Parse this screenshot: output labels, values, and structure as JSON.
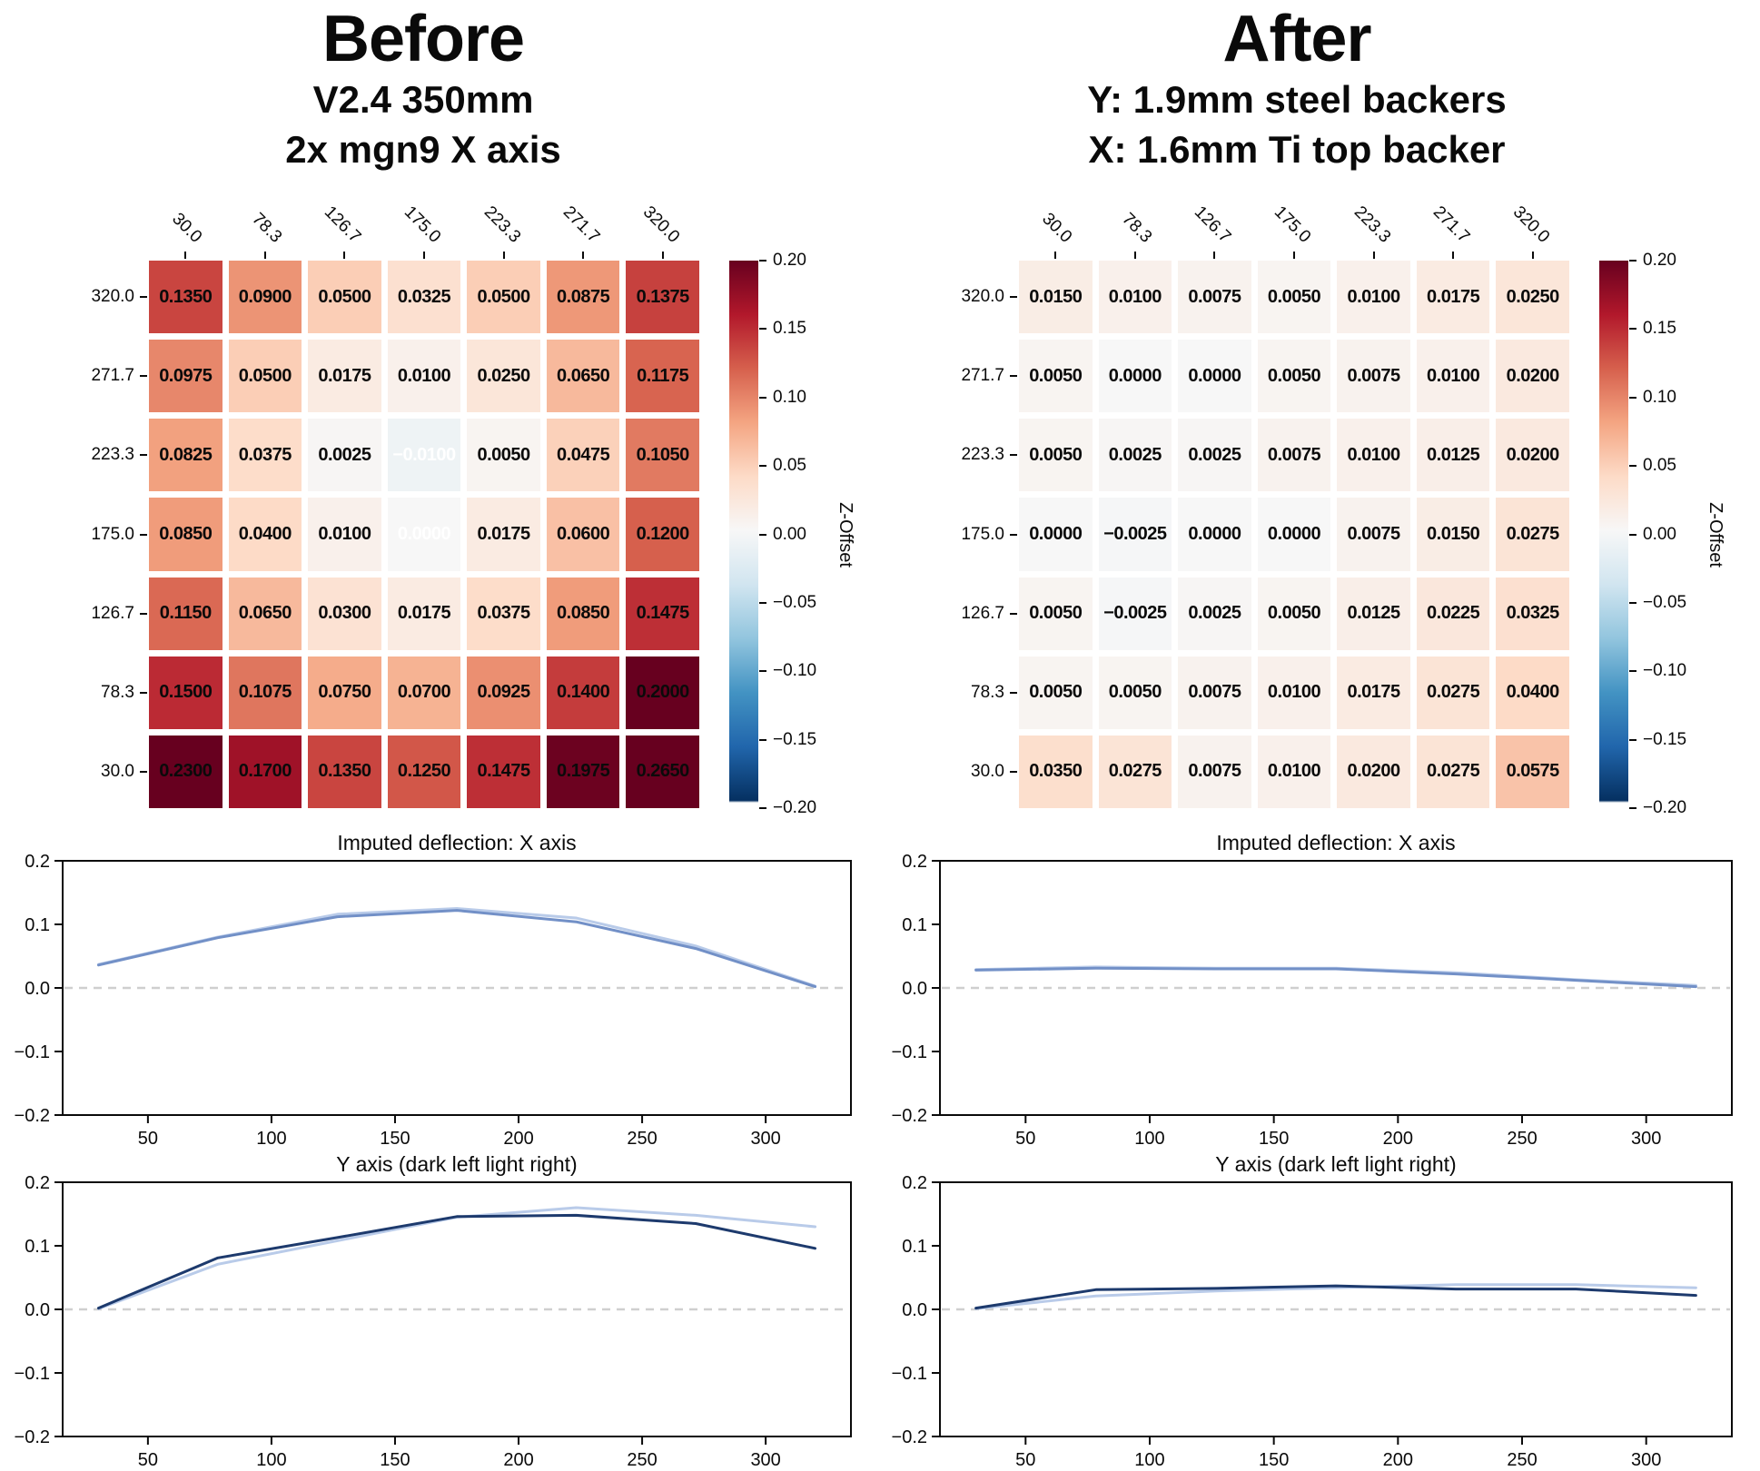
{
  "panels": {
    "before": {
      "title": "Before",
      "subtitle1": "V2.4 350mm",
      "subtitle2": "2x mgn9 X axis"
    },
    "after": {
      "title": "After",
      "subtitle1": "Y: 1.9mm steel backers",
      "subtitle2": "X: 1.6mm Ti top backer"
    }
  },
  "chart_data": [
    {
      "id": "before_heatmap",
      "type": "heatmap",
      "panel": "Before",
      "x_labels": [
        "30.0",
        "78.3",
        "126.7",
        "175.0",
        "223.3",
        "271.7",
        "320.0"
      ],
      "y_labels": [
        "320.0",
        "271.7",
        "223.3",
        "175.0",
        "126.7",
        "78.3",
        "30.0"
      ],
      "values": [
        [
          0.135,
          0.09,
          0.05,
          0.0325,
          0.05,
          0.0875,
          0.1375
        ],
        [
          0.0975,
          0.05,
          0.0175,
          0.01,
          0.025,
          0.065,
          0.1175
        ],
        [
          0.0825,
          0.0375,
          0.0025,
          -0.01,
          0.005,
          0.0475,
          0.105
        ],
        [
          0.085,
          0.04,
          0.01,
          0.0,
          0.0175,
          0.06,
          0.12
        ],
        [
          0.115,
          0.065,
          0.03,
          0.0175,
          0.0375,
          0.085,
          0.1475
        ],
        [
          0.15,
          0.1075,
          0.075,
          0.07,
          0.0925,
          0.14,
          0.2
        ],
        [
          0.23,
          0.17,
          0.135,
          0.125,
          0.1475,
          0.1975,
          0.265
        ]
      ],
      "white_text_cells": [
        [
          2,
          3
        ],
        [
          3,
          3
        ]
      ],
      "vmin": -0.2,
      "vmax": 0.2,
      "colormap": "RdBu_r",
      "colorbar_label": "Z-Offset",
      "colorbar_ticks": [
        "0.20",
        "0.15",
        "0.10",
        "0.05",
        "0.00",
        "−0.05",
        "−0.10",
        "−0.15",
        "−0.20"
      ]
    },
    {
      "id": "after_heatmap",
      "type": "heatmap",
      "panel": "After",
      "x_labels": [
        "30.0",
        "78.3",
        "126.7",
        "175.0",
        "223.3",
        "271.7",
        "320.0"
      ],
      "y_labels": [
        "320.0",
        "271.7",
        "223.3",
        "175.0",
        "126.7",
        "78.3",
        "30.0"
      ],
      "values": [
        [
          0.015,
          0.01,
          0.0075,
          0.005,
          0.01,
          0.0175,
          0.025
        ],
        [
          0.005,
          0.0,
          0.0,
          0.005,
          0.0075,
          0.01,
          0.02
        ],
        [
          0.005,
          0.0025,
          0.0025,
          0.0075,
          0.01,
          0.0125,
          0.02
        ],
        [
          0.0,
          -0.0025,
          0.0,
          0.0,
          0.0075,
          0.015,
          0.0275
        ],
        [
          0.005,
          -0.0025,
          0.0025,
          0.005,
          0.0125,
          0.0225,
          0.0325
        ],
        [
          0.005,
          0.005,
          0.0075,
          0.01,
          0.0175,
          0.0275,
          0.04
        ],
        [
          0.035,
          0.0275,
          0.0075,
          0.01,
          0.02,
          0.0275,
          0.0575
        ]
      ],
      "white_text_cells": [],
      "vmin": -0.2,
      "vmax": 0.2,
      "colormap": "RdBu_r",
      "colorbar_label": "Z-Offset",
      "colorbar_ticks": [
        "0.20",
        "0.15",
        "0.10",
        "0.05",
        "0.00",
        "−0.05",
        "−0.10",
        "−0.15",
        "−0.20"
      ]
    },
    {
      "id": "before_x",
      "type": "line",
      "title": "Imputed deflection: X axis",
      "x": [
        30.0,
        78.3,
        126.7,
        175.0,
        223.3,
        271.7,
        320.0
      ],
      "series": [
        {
          "name": "light",
          "color": "#b9cbe9",
          "values": [
            0.037,
            0.08,
            0.116,
            0.125,
            0.11,
            0.066,
            0.003
          ]
        },
        {
          "name": "main",
          "color": "#7290c7",
          "values": [
            0.036,
            0.079,
            0.112,
            0.122,
            0.104,
            0.062,
            0.002
          ]
        }
      ],
      "ylim": [
        -0.2,
        0.2
      ],
      "ytick_values": [
        0.2,
        0.1,
        0.0,
        -0.1,
        -0.2
      ],
      "ytick_labels": [
        "0.2",
        "0.1",
        "0.0",
        "−0.1",
        "−0.2"
      ],
      "xticks": [
        50,
        100,
        150,
        200,
        250,
        300
      ],
      "zero_line": true
    },
    {
      "id": "before_y",
      "type": "line",
      "title": "Y axis (dark left light right)",
      "x": [
        30.0,
        78.3,
        126.7,
        175.0,
        223.3,
        271.7,
        320.0
      ],
      "series": [
        {
          "name": "light_right",
          "color": "#b9cbe9",
          "values": [
            0.001,
            0.071,
            0.108,
            0.145,
            0.16,
            0.148,
            0.13
          ]
        },
        {
          "name": "dark_left",
          "color": "#1d3a6d",
          "values": [
            0.002,
            0.081,
            0.113,
            0.146,
            0.148,
            0.135,
            0.096
          ]
        }
      ],
      "ylim": [
        -0.2,
        0.2
      ],
      "ytick_values": [
        0.2,
        0.1,
        0.0,
        -0.1,
        -0.2
      ],
      "ytick_labels": [
        "0.2",
        "0.1",
        "0.0",
        "−0.1",
        "−0.2"
      ],
      "xticks": [
        50,
        100,
        150,
        200,
        250,
        300
      ],
      "zero_line": true
    },
    {
      "id": "after_x",
      "type": "line",
      "title": "Imputed deflection: X axis",
      "x": [
        30.0,
        78.3,
        126.7,
        175.0,
        223.3,
        271.7,
        320.0
      ],
      "series": [
        {
          "name": "light",
          "color": "#b9cbe9",
          "values": [
            0.029,
            0.033,
            0.031,
            0.031,
            0.024,
            0.013,
            0.004
          ]
        },
        {
          "name": "main",
          "color": "#7290c7",
          "values": [
            0.028,
            0.031,
            0.03,
            0.03,
            0.022,
            0.012,
            0.002
          ]
        }
      ],
      "ylim": [
        -0.2,
        0.2
      ],
      "ytick_values": [
        0.2,
        0.1,
        0.0,
        -0.1,
        -0.2
      ],
      "ytick_labels": [
        "0.2",
        "0.1",
        "0.0",
        "−0.1",
        "−0.2"
      ],
      "xticks": [
        50,
        100,
        150,
        200,
        250,
        300
      ],
      "zero_line": true
    },
    {
      "id": "after_y",
      "type": "line",
      "title": "Y axis (dark left light right)",
      "x": [
        30.0,
        78.3,
        126.7,
        175.0,
        223.3,
        271.7,
        320.0
      ],
      "series": [
        {
          "name": "light_right",
          "color": "#b9cbe9",
          "values": [
            0.001,
            0.021,
            0.029,
            0.034,
            0.039,
            0.039,
            0.034
          ]
        },
        {
          "name": "dark_left",
          "color": "#1d3a6d",
          "values": [
            0.002,
            0.031,
            0.033,
            0.037,
            0.032,
            0.032,
            0.022
          ]
        }
      ],
      "ylim": [
        -0.2,
        0.2
      ],
      "ytick_values": [
        0.2,
        0.1,
        0.0,
        -0.1,
        -0.2
      ],
      "ytick_labels": [
        "0.2",
        "0.1",
        "0.0",
        "−0.1",
        "−0.2"
      ],
      "xticks": [
        50,
        100,
        150,
        200,
        250,
        300
      ],
      "zero_line": true
    }
  ]
}
